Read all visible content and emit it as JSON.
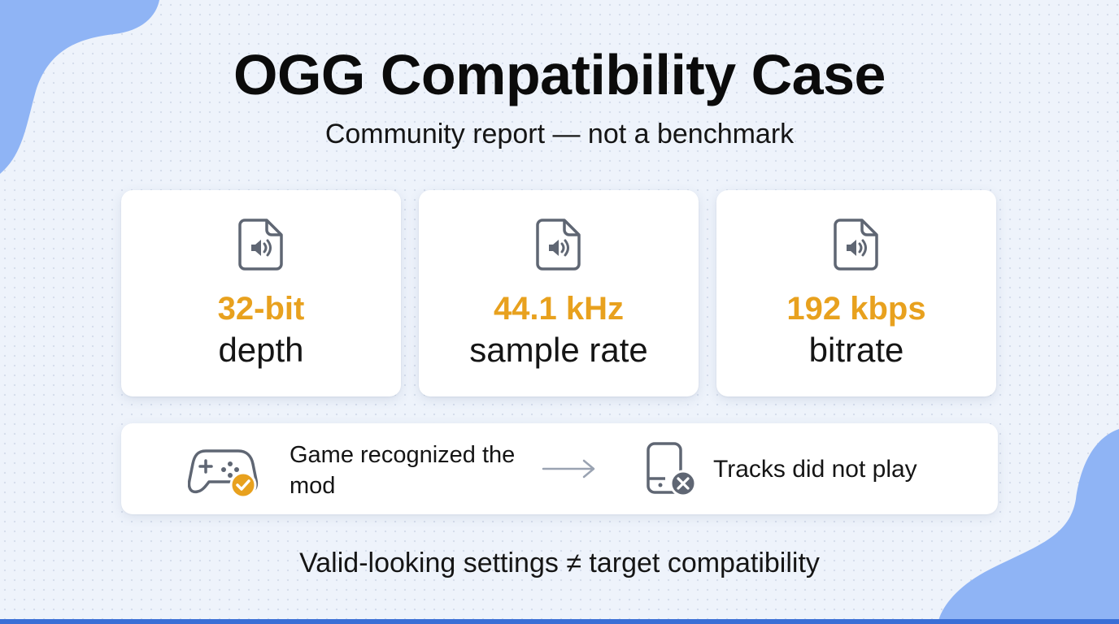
{
  "title": "OGG Compatibility Case",
  "subtitle": "Community report — not a benchmark",
  "stats": [
    {
      "value": "32-bit",
      "label": "depth",
      "icon": "audio-file-icon"
    },
    {
      "value": "44.1 kHz",
      "label": "sample rate",
      "icon": "audio-file-icon"
    },
    {
      "value": "192 kbps",
      "label": "bitrate",
      "icon": "audio-file-icon"
    }
  ],
  "flow": {
    "recognized_text": "Game recognized the mod",
    "failed_text": "Tracks did not play"
  },
  "footer": "Valid-looking settings ≠ target compatibility",
  "colors": {
    "accent": "#e8a11e",
    "background": "#eef3fb",
    "blob": "#8fb4f5",
    "bottom_bar": "#3a6fd6",
    "icon_gray": "#5f6673",
    "error_badge": "#5f6673"
  }
}
